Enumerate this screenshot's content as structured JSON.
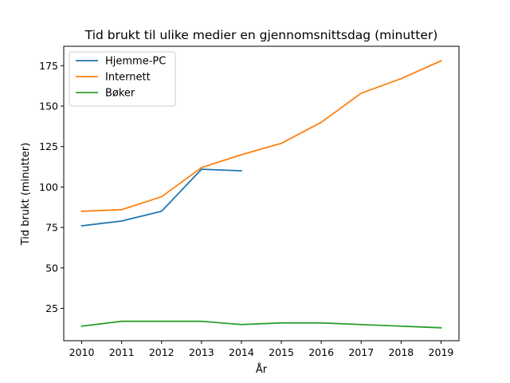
{
  "chart_data": {
    "type": "line",
    "title": "Tid brukt til ulike medier en gjennomsnittsdag (minutter)",
    "xlabel": "År",
    "ylabel": "Tid brukt (minutter)",
    "xlim": [
      2009.55,
      2019.45
    ],
    "ylim": [
      5,
      187
    ],
    "x_ticks": [
      2010,
      2011,
      2012,
      2013,
      2014,
      2015,
      2016,
      2017,
      2018,
      2019
    ],
    "y_ticks": [
      25,
      50,
      75,
      100,
      125,
      150,
      175
    ],
    "grid": false,
    "legend_position": "top-left",
    "series": [
      {
        "name": "Hjemme-PC",
        "color": "#1f77b4",
        "x": [
          2010,
          2011,
          2012,
          2013,
          2014
        ],
        "y": [
          76,
          79,
          85,
          111,
          110
        ]
      },
      {
        "name": "Internett",
        "color": "#ff7f0e",
        "x": [
          2010,
          2011,
          2012,
          2013,
          2014,
          2015,
          2016,
          2017,
          2018,
          2019
        ],
        "y": [
          85,
          86,
          94,
          112,
          120,
          127,
          140,
          158,
          167,
          178
        ]
      },
      {
        "name": "Bøker",
        "color": "#2ca02c",
        "x": [
          2010,
          2011,
          2012,
          2013,
          2014,
          2015,
          2016,
          2017,
          2018,
          2019
        ],
        "y": [
          14,
          17,
          17,
          17,
          15,
          16,
          16,
          15,
          14,
          13
        ]
      }
    ]
  }
}
